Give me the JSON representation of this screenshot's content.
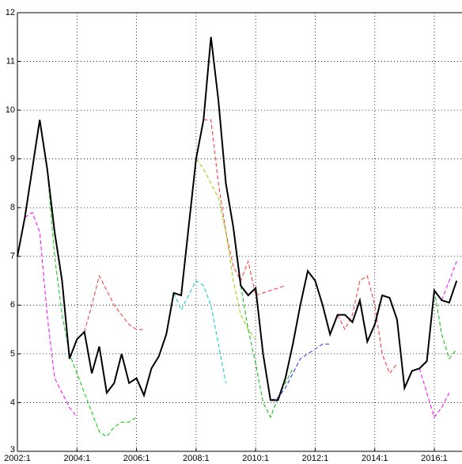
{
  "chart_data": {
    "type": "line",
    "grid": true,
    "xlim": [
      2002,
      2016.93
    ],
    "ylim": [
      3,
      12
    ],
    "xticks": [
      {
        "value": 2002,
        "label": "2002:1"
      },
      {
        "value": 2004,
        "label": "2004:1"
      },
      {
        "value": 2006,
        "label": "2006:1"
      },
      {
        "value": 2008,
        "label": "2008:1"
      },
      {
        "value": 2010,
        "label": "2010:1"
      },
      {
        "value": 2012,
        "label": "2012:1"
      },
      {
        "value": 2014,
        "label": "2014:1"
      },
      {
        "value": 2016,
        "label": "2016:1"
      }
    ],
    "yticks": [
      3,
      4,
      5,
      6,
      7,
      8,
      9,
      10,
      11,
      12
    ],
    "series": [
      {
        "color": "#00cc00",
        "dashed": true,
        "x": [
          2002.75,
          2003,
          2003.25,
          2003.5,
          2003.75,
          2004,
          2004.25,
          2004.5,
          2004.75,
          2005,
          2005.25,
          2005.5,
          2005.75,
          2006
        ],
        "values": [
          9.8,
          8.8,
          7.0,
          5.8,
          5.0,
          4.6,
          4.2,
          3.8,
          3.4,
          3.3,
          3.5,
          3.6,
          3.6,
          3.7
        ]
      },
      {
        "color": "#ff00ff",
        "dashed": true,
        "x": [
          2002.25,
          2002.5,
          2002.75,
          2003,
          2003.25,
          2003.5,
          2003.75,
          2004
        ],
        "values": [
          7.8,
          7.9,
          7.5,
          5.8,
          4.5,
          4.2,
          3.9,
          3.7
        ]
      },
      {
        "color": "#ff3030",
        "dashed": true,
        "x": [
          2004.25,
          2004.5,
          2004.75,
          2005,
          2005.25,
          2005.5,
          2005.75,
          2006,
          2006.25
        ],
        "values": [
          5.45,
          6.0,
          6.6,
          6.3,
          6.0,
          5.8,
          5.6,
          5.5,
          5.5
        ]
      },
      {
        "color": "#ff3030",
        "dashed": true,
        "x": [
          2008.25,
          2008.5,
          2008.75,
          2009,
          2009.25,
          2009.5,
          2009.75,
          2010,
          2010.5,
          2011
        ],
        "values": [
          9.8,
          9.8,
          8.5,
          7.5,
          6.8,
          6.5,
          6.9,
          6.2,
          6.3,
          6.4
        ]
      },
      {
        "color": "#99cc00",
        "dashed": true,
        "x": [
          2008,
          2008.25,
          2008.5,
          2008.75,
          2009,
          2009.25,
          2009.5,
          2009.75,
          2010
        ],
        "values": [
          9.0,
          8.8,
          8.5,
          8.2,
          7.5,
          6.5,
          5.8,
          5.5,
          5.3
        ]
      },
      {
        "color": "#00cccc",
        "dashed": true,
        "x": [
          2007.25,
          2007.5,
          2007.75,
          2008,
          2008.25,
          2008.5,
          2008.75,
          2009
        ],
        "values": [
          6.25,
          5.9,
          6.2,
          6.5,
          6.4,
          6.0,
          5.2,
          4.4
        ]
      },
      {
        "color": "#00bb00",
        "dashed": true,
        "x": [
          2009.5,
          2009.75,
          2010,
          2010.25,
          2010.5,
          2010.75,
          2011,
          2011.25
        ],
        "values": [
          6.4,
          5.5,
          4.8,
          4.0,
          3.7,
          4.1,
          4.4,
          4.7
        ]
      },
      {
        "color": "#3030ff",
        "dashed": true,
        "x": [
          2010.5,
          2010.75,
          2011,
          2011.25,
          2011.5,
          2011.75,
          2012,
          2012.25,
          2012.5
        ],
        "values": [
          4.05,
          4.1,
          4.3,
          4.6,
          4.9,
          5.0,
          5.1,
          5.2,
          5.2
        ]
      },
      {
        "color": "#ff3030",
        "dashed": true,
        "x": [
          2012.75,
          2013,
          2013.25,
          2013.5,
          2013.75,
          2014,
          2014.25,
          2014.5,
          2014.75
        ],
        "values": [
          5.8,
          5.5,
          5.8,
          6.5,
          6.6,
          6.0,
          5.0,
          4.6,
          4.8
        ]
      },
      {
        "color": "#ff00ff",
        "dashed": true,
        "x": [
          2015.5,
          2015.75,
          2016,
          2016.25,
          2016.5
        ],
        "values": [
          4.7,
          4.2,
          3.7,
          3.9,
          4.2
        ]
      },
      {
        "color": "#ff00ff",
        "dashed": true,
        "x": [
          2016.25,
          2016.5,
          2016.75
        ],
        "values": [
          6.1,
          6.5,
          6.9
        ]
      },
      {
        "color": "#00bb00",
        "dashed": true,
        "x": [
          2016,
          2016.25,
          2016.5,
          2016.75
        ],
        "values": [
          6.3,
          5.4,
          4.9,
          5.1
        ]
      },
      {
        "color": "#000000",
        "dashed": false,
        "x": [
          2002,
          2002.25,
          2002.5,
          2002.75,
          2003,
          2003.25,
          2003.5,
          2003.75,
          2004,
          2004.25,
          2004.5,
          2004.75,
          2005,
          2005.25,
          2005.5,
          2005.75,
          2006,
          2006.25,
          2006.5,
          2006.75,
          2007,
          2007.25,
          2007.5,
          2007.75,
          2008,
          2008.25,
          2008.5,
          2008.75,
          2009,
          2009.25,
          2009.5,
          2009.75,
          2010,
          2010.25,
          2010.5,
          2010.75,
          2011,
          2011.25,
          2011.5,
          2011.75,
          2012,
          2012.25,
          2012.5,
          2012.75,
          2013,
          2013.25,
          2013.5,
          2013.75,
          2014,
          2014.25,
          2014.5,
          2014.75,
          2015,
          2015.25,
          2015.5,
          2015.75,
          2016,
          2016.25,
          2016.5,
          2016.75
        ],
        "values": [
          7.0,
          7.8,
          8.8,
          9.8,
          8.8,
          7.5,
          6.5,
          4.9,
          5.3,
          5.45,
          4.6,
          5.15,
          4.2,
          4.4,
          5.0,
          4.4,
          4.5,
          4.15,
          4.7,
          4.95,
          5.4,
          6.25,
          6.2,
          7.6,
          9.0,
          9.8,
          11.5,
          10.2,
          8.5,
          7.6,
          6.4,
          6.2,
          6.35,
          5.0,
          4.05,
          4.05,
          4.5,
          5.2,
          6.0,
          6.7,
          6.5,
          6.0,
          5.4,
          5.8,
          5.8,
          5.65,
          6.1,
          5.25,
          5.6,
          6.2,
          6.15,
          5.7,
          4.3,
          4.65,
          4.7,
          4.85,
          6.3,
          6.1,
          6.05,
          6.5
        ]
      }
    ]
  }
}
